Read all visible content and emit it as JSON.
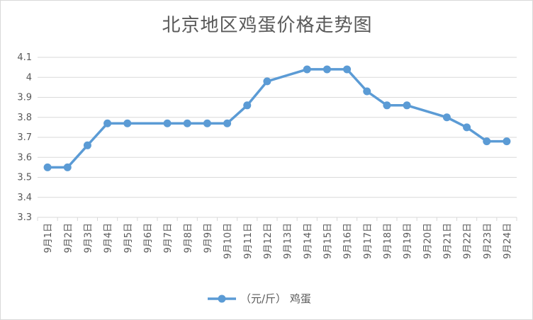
{
  "chart_data": {
    "type": "line",
    "title": "北京地区鸡蛋价格走势图",
    "categories": [
      "9月1日",
      "9月2日",
      "9月3日",
      "9月4日",
      "9月5日",
      "9月6日",
      "9月7日",
      "9月8日",
      "9月9日",
      "9月10日",
      "9月11日",
      "9月12日",
      "9月13日",
      "9月14日",
      "9月15日",
      "9月16日",
      "9月17日",
      "9月18日",
      "9月19日",
      "9月20日",
      "9月21日",
      "9月22日",
      "9月23日",
      "9月24日"
    ],
    "series": [
      {
        "name": "（元/斤） 鸡蛋",
        "color": "#5b9bd5",
        "values": [
          3.55,
          3.55,
          3.66,
          3.77,
          3.77,
          null,
          3.77,
          3.77,
          3.77,
          3.77,
          3.86,
          3.98,
          null,
          4.04,
          4.04,
          4.04,
          3.93,
          3.86,
          3.86,
          null,
          3.8,
          3.75,
          3.68,
          3.68
        ]
      }
    ],
    "yticks": [
      "3.3",
      "3.4",
      "3.5",
      "3.6",
      "3.7",
      "3.8",
      "3.9",
      "4",
      "4.1"
    ],
    "ylim": [
      3.3,
      4.1
    ],
    "grid": true,
    "legend_position": "bottom"
  }
}
